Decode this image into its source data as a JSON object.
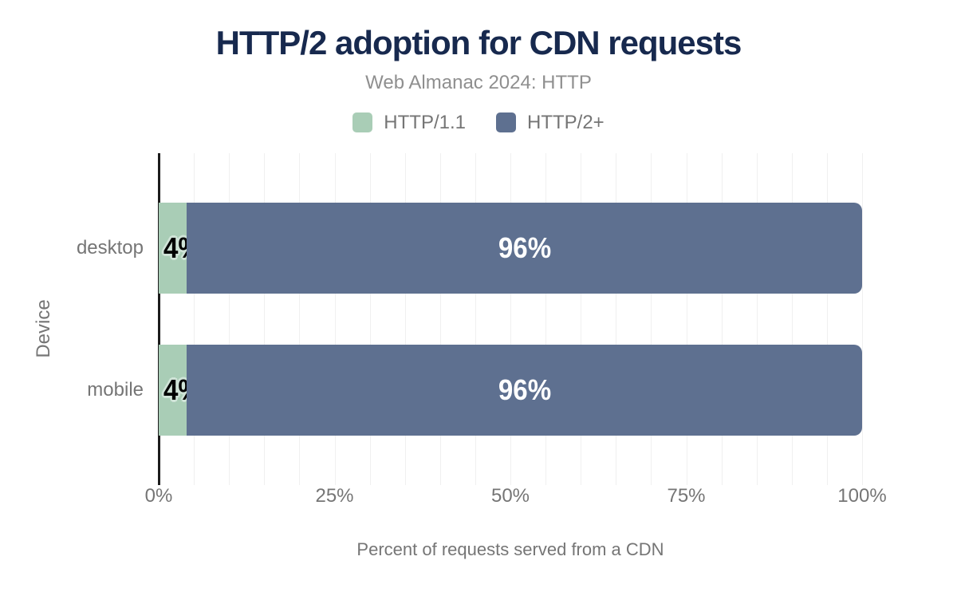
{
  "chart_data": {
    "type": "bar",
    "orientation": "horizontal",
    "stacked": true,
    "title": "HTTP/2 adoption for CDN requests",
    "subtitle": "Web Almanac 2024: HTTP",
    "xlabel": "Percent of requests served from a CDN",
    "ylabel": "Device",
    "categories": [
      "desktop",
      "mobile"
    ],
    "series": [
      {
        "name": "HTTP/1.1",
        "color": "#a9cdb6",
        "values": [
          4,
          4
        ],
        "labels": [
          "4%",
          "4%"
        ]
      },
      {
        "name": "HTTP/2+",
        "color": "#5e7090",
        "values": [
          96,
          96
        ],
        "labels": [
          "96%",
          "96%"
        ]
      }
    ],
    "x_ticks": [
      {
        "label": "0%",
        "value": 0
      },
      {
        "label": "25%",
        "value": 25
      },
      {
        "label": "50%",
        "value": 50
      },
      {
        "label": "75%",
        "value": 75
      },
      {
        "label": "100%",
        "value": 100
      }
    ],
    "xlim": [
      0,
      100
    ],
    "grid": true,
    "grid_step_percent": 5,
    "legend_position": "top"
  },
  "colors": {
    "title": "#17294e",
    "subtitle": "#8f8f8f",
    "text": "#757575",
    "grid": "#f0f0f0",
    "axis": "#1c1c1c",
    "value_label_halo": "#cfe3d7",
    "value_label_light": "#ffffff",
    "value_label_dark": "#000000"
  }
}
